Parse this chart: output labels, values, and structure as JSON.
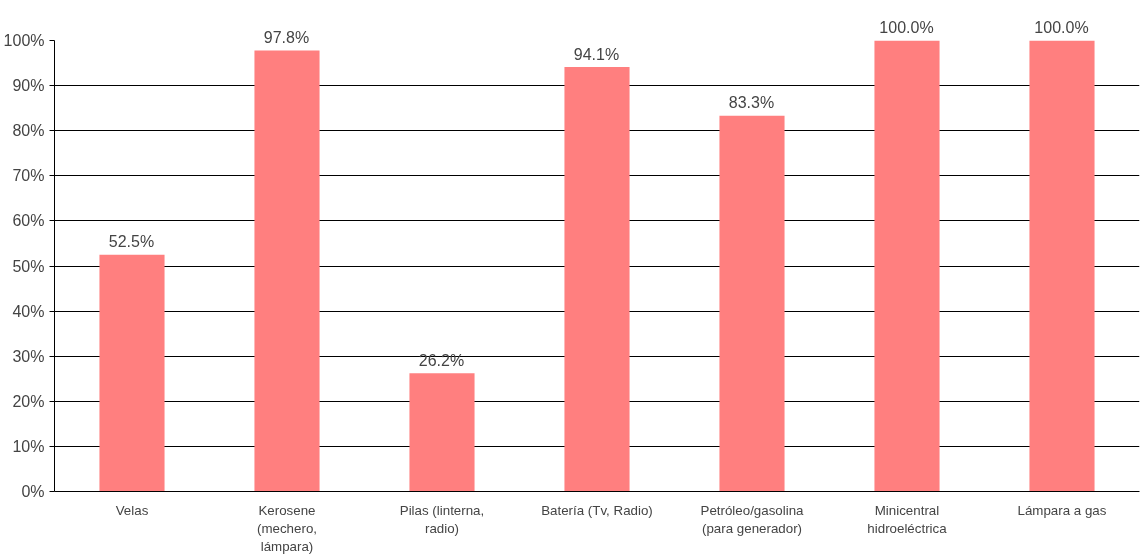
{
  "chart_data": {
    "type": "bar",
    "categories": [
      "Velas",
      "Kerosene\n(mechero,\nlámpara)",
      "Pilas (linterna,\nradio)",
      "Batería (Tv, Radio)",
      "Petróleo/gasolina\n(para generador)",
      "Minicentral\nhidroeléctrica",
      "Lámpara a gas"
    ],
    "values": [
      52.5,
      97.8,
      26.2,
      94.1,
      83.3,
      100.0,
      100.0
    ],
    "value_labels": [
      "52.5%",
      "97.8%",
      "26.2%",
      "94.1%",
      "83.3%",
      "100.0%",
      "100.0%"
    ],
    "color": "#ff7f7f",
    "ylim": [
      0,
      100
    ],
    "yticks": [
      {
        "value": 0,
        "label": "0%"
      },
      {
        "value": 10,
        "label": "10%"
      },
      {
        "value": 20,
        "label": "20%"
      },
      {
        "value": 30,
        "label": "30%"
      },
      {
        "value": 40,
        "label": "40%"
      },
      {
        "value": 50,
        "label": "50%"
      },
      {
        "value": 60,
        "label": "60%"
      },
      {
        "value": 70,
        "label": "70%"
      },
      {
        "value": 80,
        "label": "80%"
      },
      {
        "value": 90,
        "label": "90%"
      },
      {
        "value": 100,
        "label": "100%"
      }
    ],
    "grid": "y"
  }
}
